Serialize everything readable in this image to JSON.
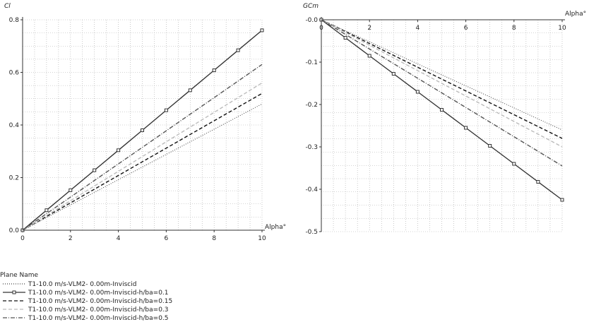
{
  "chart_data": [
    {
      "type": "line",
      "ylabel": "Cl",
      "xlabel": "Alpha°",
      "xlim": [
        0,
        10
      ],
      "ylim": [
        0,
        0.8
      ],
      "xticks": [
        0,
        2,
        4,
        6,
        8,
        10
      ],
      "xtick_labels": [
        "0",
        "2",
        "4",
        "6",
        "8",
        "10"
      ],
      "yticks": [
        0,
        0.2,
        0.4,
        0.6,
        0.8
      ],
      "ytick_labels": [
        "0.0",
        "0.2",
        "0.4",
        "0.6",
        "0.8"
      ],
      "grid": true,
      "x": [
        0,
        1,
        2,
        3,
        4,
        5,
        6,
        7,
        8,
        9,
        10
      ],
      "series": [
        {
          "name": "T1-10.0 m/s-VLM2-  0.00m-Inviscid",
          "values": [
            0,
            0.048,
            0.096,
            0.144,
            0.192,
            0.24,
            0.288,
            0.336,
            0.384,
            0.432,
            0.48
          ]
        },
        {
          "name": "T1-10.0 m/s-VLM2-  0.00m-Inviscid-h/ba=0.1",
          "values": [
            0,
            0.076,
            0.152,
            0.228,
            0.304,
            0.38,
            0.456,
            0.532,
            0.608,
            0.684,
            0.76
          ]
        },
        {
          "name": "T1-10.0 m/s-VLM2-  0.00m-Inviscid-h/ba=0.15",
          "values": [
            0,
            0.052,
            0.104,
            0.156,
            0.208,
            0.26,
            0.312,
            0.364,
            0.416,
            0.468,
            0.52
          ]
        },
        {
          "name": "T1-10.0 m/s-VLM2-  0.00m-Inviscid-h/ba=0.3",
          "values": [
            0,
            0.056,
            0.112,
            0.168,
            0.224,
            0.28,
            0.336,
            0.392,
            0.448,
            0.504,
            0.56
          ]
        },
        {
          "name": "T1-10.0 m/s-VLM2-  0.00m-Inviscid-h/ba=0.5",
          "values": [
            0,
            0.063,
            0.126,
            0.189,
            0.252,
            0.315,
            0.378,
            0.441,
            0.504,
            0.567,
            0.63
          ]
        }
      ]
    },
    {
      "type": "line",
      "ylabel": "GCm",
      "xlabel": "Alpha°",
      "xlim": [
        0,
        10
      ],
      "ylim": [
        -0.5,
        0
      ],
      "xticks": [
        0,
        2,
        4,
        6,
        8,
        10
      ],
      "xtick_labels": [
        "0",
        "2",
        "4",
        "6",
        "8",
        "10"
      ],
      "yticks": [
        0,
        -0.1,
        -0.2,
        -0.3,
        -0.4,
        -0.5
      ],
      "ytick_labels": [
        "-0.0",
        "-0.1",
        "-0.2",
        "-0.3",
        "-0.4",
        "-0.5"
      ],
      "grid": true,
      "x": [
        0,
        1,
        2,
        3,
        4,
        5,
        6,
        7,
        8,
        9,
        10
      ],
      "series": [
        {
          "name": "T1-10.0 m/s-VLM2-  0.00m-Inviscid",
          "values": [
            0,
            -0.026,
            -0.052,
            -0.078,
            -0.104,
            -0.13,
            -0.156,
            -0.182,
            -0.208,
            -0.234,
            -0.26
          ]
        },
        {
          "name": "T1-10.0 m/s-VLM2-  0.00m-Inviscid-h/ba=0.1",
          "values": [
            0,
            -0.0425,
            -0.085,
            -0.1275,
            -0.17,
            -0.2125,
            -0.255,
            -0.2975,
            -0.34,
            -0.3825,
            -0.425
          ]
        },
        {
          "name": "T1-10.0 m/s-VLM2-  0.00m-Inviscid-h/ba=0.15",
          "values": [
            0,
            -0.028,
            -0.056,
            -0.084,
            -0.112,
            -0.14,
            -0.168,
            -0.196,
            -0.224,
            -0.252,
            -0.28
          ]
        },
        {
          "name": "T1-10.0 m/s-VLM2-  0.00m-Inviscid-h/ba=0.3",
          "values": [
            0,
            -0.03,
            -0.06,
            -0.09,
            -0.12,
            -0.15,
            -0.18,
            -0.21,
            -0.24,
            -0.27,
            -0.3
          ]
        },
        {
          "name": "T1-10.0 m/s-VLM2-  0.00m-Inviscid-h/ba=0.5",
          "values": [
            0,
            -0.0345,
            -0.069,
            -0.1035,
            -0.138,
            -0.1725,
            -0.207,
            -0.2415,
            -0.276,
            -0.3105,
            -0.345
          ]
        }
      ]
    }
  ],
  "legend": {
    "title": "Plane Name",
    "items": [
      {
        "label": "T1-10.0 m/s-VLM2-  0.00m-Inviscid",
        "color": "#444444",
        "dash": "1,2",
        "marker": false
      },
      {
        "label": "T1-10.0 m/s-VLM2-  0.00m-Inviscid-h/ba=0.1",
        "color": "#333333",
        "dash": "",
        "marker": true
      },
      {
        "label": "T1-10.0 m/s-VLM2-  0.00m-Inviscid-h/ba=0.15",
        "color": "#111111",
        "dash": "5,3",
        "marker": false
      },
      {
        "label": "T1-10.0 m/s-VLM2-  0.00m-Inviscid-h/ba=0.3",
        "color": "#bbbbbb",
        "dash": "5,3",
        "marker": false
      },
      {
        "label": "T1-10.0 m/s-VLM2-  0.00m-Inviscid-h/ba=0.5",
        "color": "#555555",
        "dash": "6,2,1,2",
        "marker": false
      }
    ]
  }
}
